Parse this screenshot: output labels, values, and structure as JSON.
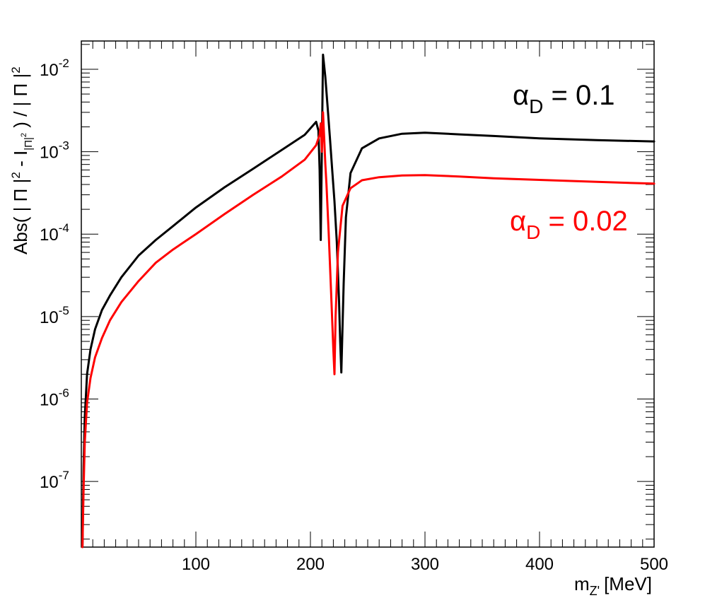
{
  "chart_data": {
    "type": "line",
    "title": "",
    "xlabel": {
      "main": "m",
      "sub": "Z'",
      "unit": "[MeV]"
    },
    "ylabel": {
      "prefix": "Abs( | Π |",
      "sup1": "2",
      "mid": " - I",
      "sub": "|Π|",
      "subsup": "2",
      "after": " ) / | Π |",
      "sup2": "2"
    },
    "xlim": [
      0,
      500
    ],
    "ylim": [
      1.6e-08,
      0.022
    ],
    "yscale": "log",
    "x_tick_labels": [
      "100",
      "200",
      "300",
      "400",
      "500"
    ],
    "y_tick_labels": [
      {
        "base": "10",
        "exp": "-7"
      },
      {
        "base": "10",
        "exp": "-6"
      },
      {
        "base": "10",
        "exp": "-5"
      },
      {
        "base": "10",
        "exp": "-4"
      },
      {
        "base": "10",
        "exp": "-3"
      },
      {
        "base": "10",
        "exp": "-2"
      }
    ],
    "series": [
      {
        "name": "αD = 0.1",
        "legend": {
          "symbol": "α",
          "sub": "D",
          "text": " = 0.1"
        },
        "color": "#000000",
        "x": [
          1,
          2,
          3,
          5,
          8,
          12,
          18,
          25,
          35,
          50,
          65,
          80,
          100,
          125,
          150,
          175,
          195,
          205,
          207,
          208,
          209,
          211,
          213,
          215,
          217,
          219,
          221,
          223,
          225,
          226,
          227,
          229,
          231,
          235,
          245,
          260,
          280,
          300,
          330,
          360,
          400,
          450,
          500
        ],
        "y": [
          1.6e-08,
          1.5e-07,
          6e-07,
          2e-06,
          4e-06,
          7e-06,
          1.2e-05,
          1.8e-05,
          3e-05,
          5.5e-05,
          8.5e-05,
          0.000125,
          0.00021,
          0.00037,
          0.00062,
          0.00105,
          0.0016,
          0.0023,
          0.0018,
          0.0006,
          8.5e-05,
          0.015,
          0.008,
          0.0035,
          0.0015,
          0.0006,
          0.00025,
          8e-05,
          1.5e-05,
          5e-06,
          2.1e-06,
          2.5e-05,
          0.00016,
          0.00055,
          0.0011,
          0.00145,
          0.00165,
          0.0017,
          0.00162,
          0.00155,
          0.00145,
          0.00138,
          0.00133
        ]
      },
      {
        "name": "αD = 0.02",
        "legend": {
          "symbol": "α",
          "sub": "D",
          "text": " = 0.02"
        },
        "color": "#ff0000",
        "x": [
          1,
          2,
          3,
          5,
          8,
          12,
          18,
          25,
          35,
          50,
          65,
          80,
          100,
          125,
          150,
          175,
          195,
          205,
          208,
          209,
          210,
          211,
          212,
          213,
          214,
          216,
          218,
          220,
          221,
          222,
          224,
          228,
          235,
          245,
          260,
          280,
          300,
          330,
          360,
          400,
          450,
          500
        ],
        "y": [
          1.6e-08,
          8e-08,
          3e-07,
          9e-07,
          1.8e-06,
          3.2e-06,
          5.5e-06,
          9e-06,
          1.5e-05,
          2.7e-05,
          4.5e-05,
          6.5e-05,
          0.0001,
          0.000175,
          0.0003,
          0.0005,
          0.0008,
          0.0012,
          0.0016,
          0.0022,
          0.001,
          0.003,
          0.0015,
          0.0007,
          0.0004,
          0.0001,
          2e-05,
          4e-06,
          2e-06,
          1e-05,
          6e-05,
          0.00022,
          0.00036,
          0.00045,
          0.00049,
          0.000515,
          0.00052,
          0.0005,
          0.000475,
          0.000455,
          0.00043,
          0.00041
        ]
      }
    ]
  }
}
